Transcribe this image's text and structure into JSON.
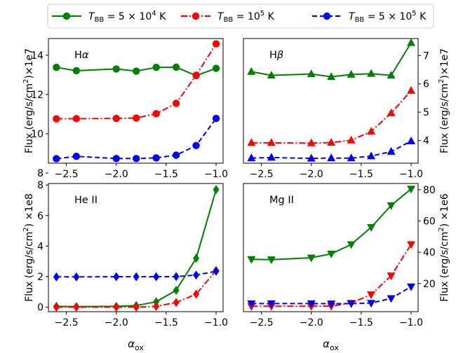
{
  "colors": {
    "green": "#008000",
    "red": "#ff0000",
    "blue": "#0000ff"
  },
  "legend": [
    {
      "label": "T_BB = 5 × 10⁴ K",
      "pre": "T",
      "sub": "BB",
      "post": " = 5 × 10",
      "sup": "4",
      "tail": " K",
      "color": "#008000",
      "dash": "solid"
    },
    {
      "label": "T_BB = 10⁵ K",
      "pre": "T",
      "sub": "BB",
      "post": " = 10",
      "sup": "5",
      "tail": " K",
      "color": "#ff0000",
      "dash": "dashdot"
    },
    {
      "label": "T_BB = 5 × 10⁵ K",
      "pre": "T",
      "sub": "BB",
      "post": " = 5 × 10",
      "sup": "5",
      "tail": " K",
      "color": "#0000ff",
      "dash": "dashed"
    }
  ],
  "chart_data": [
    {
      "type": "line",
      "panel": "top-left",
      "title": "Hα",
      "title_main": "H",
      "title_greek": "α",
      "marker": "circle",
      "x": [
        -2.6,
        -2.4,
        -2.0,
        -1.8,
        -1.6,
        -1.4,
        -1.2,
        -1.0
      ],
      "xlim": [
        -2.68,
        -0.93
      ],
      "xticks": [
        "−2.5",
        "−2.0",
        "−1.5",
        "−1.0"
      ],
      "xtick_values": [
        -2.5,
        -2.0,
        -1.5,
        -1.0
      ],
      "ylim": [
        8.5,
        14.85
      ],
      "yticks": [
        "8",
        "10",
        "12",
        "14"
      ],
      "ytick_values": [
        8,
        10,
        12,
        14
      ],
      "ylabel": "Flux (erg/s/cm²)×1e7",
      "ylabel_side": "left",
      "xlabel": "",
      "series": [
        {
          "name": "T_BB = 5 × 10⁴ K",
          "values": [
            13.38,
            13.21,
            13.3,
            13.19,
            13.38,
            13.39,
            12.96,
            13.33
          ]
        },
        {
          "name": "T_BB = 10⁵ K",
          "values": [
            10.76,
            10.77,
            10.78,
            10.8,
            11.02,
            11.55,
            12.98,
            14.58
          ]
        },
        {
          "name": "T_BB = 5 × 10⁵ K",
          "values": [
            8.73,
            8.85,
            8.74,
            8.74,
            8.77,
            8.91,
            9.4,
            10.78
          ]
        }
      ]
    },
    {
      "type": "line",
      "panel": "top-right",
      "title": "Hβ",
      "title_main": "H",
      "title_greek": "β",
      "marker": "triangle-up",
      "x": [
        -2.6,
        -2.4,
        -2.0,
        -1.8,
        -1.6,
        -1.4,
        -1.2,
        -1.0
      ],
      "xlim": [
        -2.68,
        -0.93
      ],
      "xticks": [
        "−2.5",
        "−2.0",
        "−1.5",
        "−1.0"
      ],
      "xtick_values": [
        -2.5,
        -2.0,
        -1.5,
        -1.0
      ],
      "ylim": [
        3.2,
        7.6
      ],
      "yticks": [
        "4",
        "5",
        "6",
        "7"
      ],
      "ytick_values": [
        4,
        5,
        6,
        7
      ],
      "ylabel": "Flux (erg/s/cm²)×1e7",
      "ylabel_side": "right",
      "xlabel": "",
      "series": [
        {
          "name": "T_BB = 5 × 10⁴ K",
          "values": [
            6.43,
            6.3,
            6.35,
            6.25,
            6.33,
            6.36,
            6.3,
            7.45
          ]
        },
        {
          "name": "T_BB = 10⁵ K",
          "values": [
            3.92,
            3.92,
            3.91,
            3.93,
            4.01,
            4.32,
            4.97,
            5.76
          ]
        },
        {
          "name": "T_BB = 5 × 10⁵ K",
          "values": [
            3.38,
            3.4,
            3.37,
            3.38,
            3.38,
            3.45,
            3.61,
            3.98
          ]
        }
      ]
    },
    {
      "type": "line",
      "panel": "bottom-left",
      "title": "He II",
      "marker": "diamond",
      "x": [
        -2.6,
        -2.4,
        -2.0,
        -1.8,
        -1.6,
        -1.4,
        -1.2,
        -1.0
      ],
      "xlim": [
        -2.68,
        -0.93
      ],
      "xticks": [
        "−2.5",
        "−2.0",
        "−1.5",
        "−1.0"
      ],
      "xtick_values": [
        -2.5,
        -2.0,
        -1.5,
        -1.0
      ],
      "ylim": [
        -0.3,
        8.1
      ],
      "yticks": [
        "0",
        "2",
        "4",
        "6",
        "8"
      ],
      "ytick_values": [
        0,
        2,
        4,
        6,
        8
      ],
      "ylabel": "Flux (erg/s/cm²) ×1e8",
      "ylabel_side": "left",
      "xlabel": "α_ox",
      "xlabel_main": "α",
      "xlabel_sub": "ox",
      "series": [
        {
          "name": "T_BB = 5 × 10⁴ K",
          "values": [
            0.05,
            0.03,
            0.05,
            0.1,
            0.35,
            1.1,
            3.2,
            7.7
          ]
        },
        {
          "name": "T_BB = 10⁵ K",
          "values": [
            0.0,
            0.0,
            0.0,
            0.0,
            0.05,
            0.3,
            0.85,
            2.4
          ]
        },
        {
          "name": "T_BB = 5 × 10⁵ K",
          "values": [
            1.98,
            1.98,
            1.99,
            1.99,
            1.99,
            2.0,
            2.1,
            2.35
          ]
        }
      ]
    },
    {
      "type": "line",
      "panel": "bottom-right",
      "title": "Mg II",
      "marker": "triangle-down",
      "x": [
        -2.6,
        -2.4,
        -2.0,
        -1.8,
        -1.6,
        -1.4,
        -1.2,
        -1.0
      ],
      "xlim": [
        -2.68,
        -0.93
      ],
      "xticks": [
        "−2.5",
        "−2.0",
        "−1.5",
        "−1.0"
      ],
      "xtick_values": [
        -2.5,
        -2.0,
        -1.5,
        -1.0
      ],
      "ylim": [
        2,
        84
      ],
      "yticks": [
        "20",
        "40",
        "60",
        "80"
      ],
      "ytick_values": [
        20,
        40,
        60,
        80
      ],
      "ylabel": "Flux (erg/s/cm²) ×1e6",
      "ylabel_side": "right",
      "xlabel": "α_ox",
      "xlabel_main": "α",
      "xlabel_sub": "ox",
      "series": [
        {
          "name": "T_BB = 5 × 10⁴ K",
          "values": [
            35.5,
            35.3,
            36.5,
            39.0,
            45.0,
            56.0,
            70.0,
            80.5
          ]
        },
        {
          "name": "T_BB = 10⁵ K",
          "values": [
            5.5,
            5.5,
            5.5,
            5.6,
            7.5,
            13.0,
            25.0,
            45.0
          ]
        },
        {
          "name": "T_BB = 5 × 10⁵ K",
          "values": [
            7.2,
            7.2,
            7.2,
            7.1,
            7.2,
            7.5,
            10.5,
            18.0
          ]
        }
      ]
    }
  ]
}
